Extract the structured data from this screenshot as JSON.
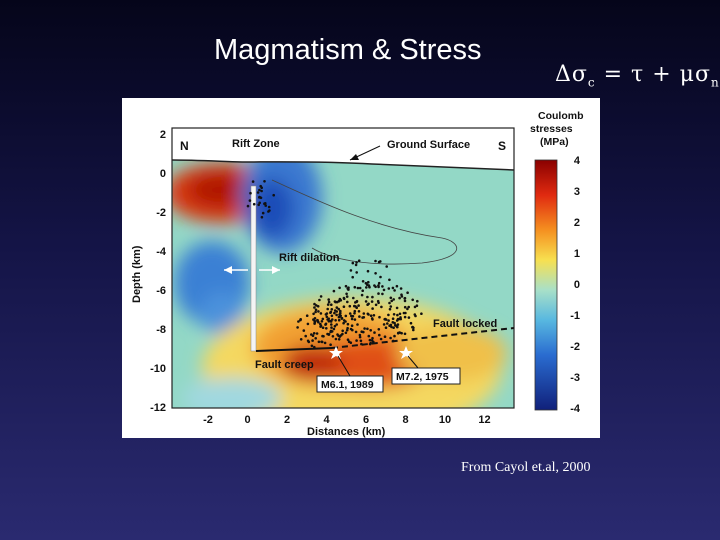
{
  "slide": {
    "title": "Magmatism & Stress",
    "equation": {
      "lhs": "Δσ",
      "lhs_sub": "c",
      "eq": " = τ + μσ",
      "rhs_sub": "n"
    },
    "citation": "From Cayol et.al, 2000"
  },
  "figure": {
    "y_axis_title": "Depth (km)",
    "x_axis_title": "Distances (km)",
    "y_ticks": [
      "2",
      "0",
      "-2",
      "-4",
      "-6",
      "-8",
      "-10",
      "-12"
    ],
    "x_ticks": [
      "-2",
      "0",
      "2",
      "4",
      "6",
      "8",
      "10",
      "12"
    ],
    "colorbar_title": [
      "Coulomb",
      "stresses",
      "(MPa)"
    ],
    "colorbar_ticks": [
      "4",
      "3",
      "2",
      "1",
      "0",
      "-1",
      "-2",
      "-3",
      "-4"
    ],
    "labels": {
      "north": "N",
      "south": "S",
      "rift_zone": "Rift Zone",
      "ground_surface": "Ground Surface",
      "rift_dilation": "Rift dilation",
      "fault_locked": "Fault locked",
      "fault_creep": "Fault creep",
      "event1": "M6.1, 1989",
      "event2": "M7.2, 1975"
    },
    "colors": {
      "negative": "#1d4fb8",
      "neutral": "#8fd6c8",
      "positive": "#d62a10"
    }
  }
}
